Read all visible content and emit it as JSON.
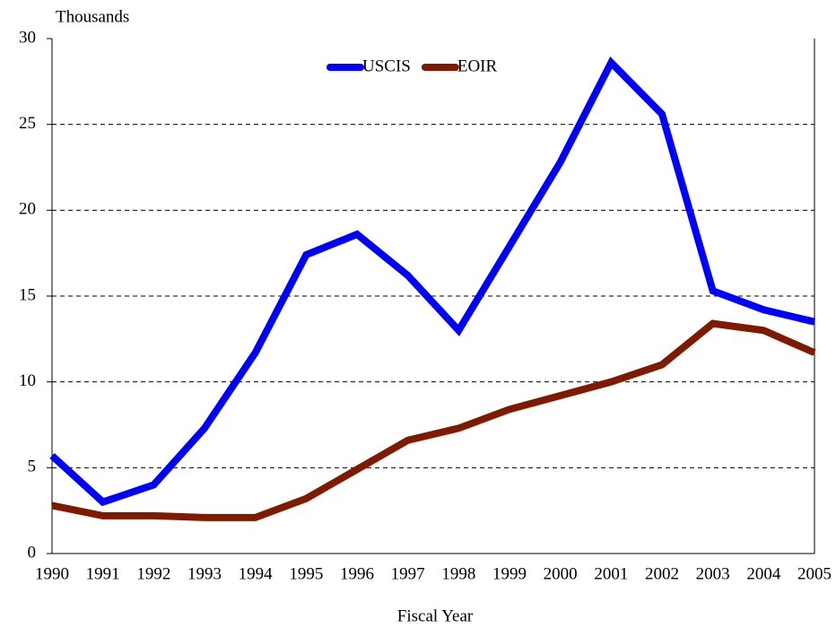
{
  "chart_data": {
    "type": "line",
    "y_label": "Thousands",
    "x_label": "Fiscal Year",
    "categories": [
      "1990",
      "1991",
      "1992",
      "1993",
      "1994",
      "1995",
      "1996",
      "1997",
      "1998",
      "1999",
      "2000",
      "2001",
      "2002",
      "2003",
      "2004",
      "2005"
    ],
    "series": [
      {
        "name": "USCIS",
        "color": "#0000ff",
        "values": [
          5.7,
          3.0,
          4.0,
          7.3,
          11.7,
          17.4,
          18.6,
          16.2,
          13.0,
          17.9,
          22.8,
          28.6,
          25.6,
          15.3,
          14.2,
          13.5
        ]
      },
      {
        "name": "EOIR",
        "color": "#7f1a00",
        "values": [
          2.8,
          2.2,
          2.2,
          2.1,
          2.1,
          3.2,
          4.9,
          6.6,
          7.3,
          8.4,
          9.2,
          10.0,
          11.0,
          13.4,
          13.0,
          11.7
        ]
      }
    ],
    "ylim": [
      0,
      30
    ],
    "yticks": [
      0,
      5,
      10,
      15,
      20,
      25,
      30
    ],
    "grid": true,
    "legend": "top"
  }
}
